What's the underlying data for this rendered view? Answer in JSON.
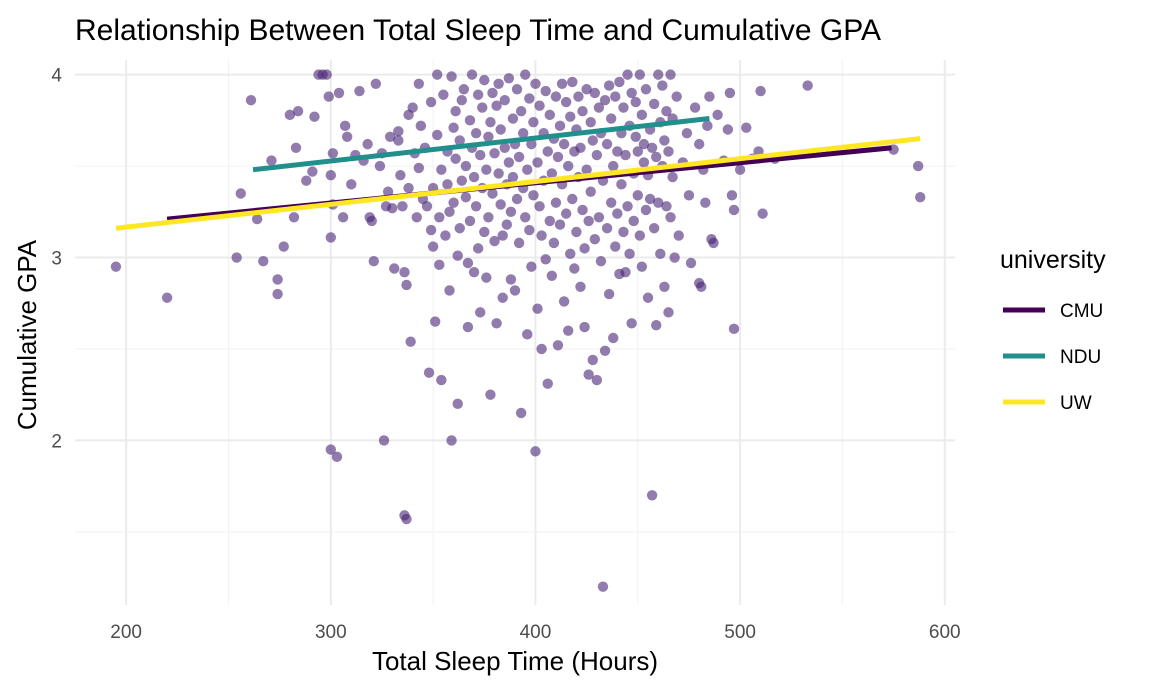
{
  "chart_data": {
    "type": "scatter",
    "title": "Relationship Between Total Sleep Time and Cumulative GPA",
    "xlabel": "Total Sleep Time (Hours)",
    "ylabel": "Cumulative GPA",
    "xlim": [
      175,
      605
    ],
    "ylim": [
      1.1,
      4.08
    ],
    "x_ticks": [
      200,
      300,
      400,
      500,
      600
    ],
    "y_ticks": [
      2,
      3,
      4
    ],
    "x_tick_labels": [
      "200",
      "300",
      "400",
      "500",
      "600"
    ],
    "y_tick_labels": [
      "2",
      "3",
      "4"
    ],
    "grid": true,
    "legend": {
      "title": "university",
      "placement": "right",
      "entries": [
        {
          "name": "CMU",
          "color": "#440154"
        },
        {
          "name": "NDU",
          "color": "#21908C"
        },
        {
          "name": "UW",
          "color": "#FDE725"
        }
      ]
    },
    "point_color": "#482576",
    "point_alpha": 0.6,
    "trend_lines": [
      {
        "name": "CMU",
        "color": "#440154",
        "x": [
          220,
          574
        ],
        "y": [
          3.21,
          3.6
        ]
      },
      {
        "name": "NDU",
        "color": "#21908C",
        "x": [
          262,
          485
        ],
        "y": [
          3.48,
          3.76
        ]
      },
      {
        "name": "UW",
        "color": "#FDE725",
        "x": [
          195,
          588
        ],
        "y": [
          3.16,
          3.65
        ]
      }
    ],
    "points": [
      [
        195,
        2.95
      ],
      [
        220,
        2.78
      ],
      [
        254,
        3.0
      ],
      [
        256,
        3.35
      ],
      [
        261,
        3.86
      ],
      [
        264,
        3.21
      ],
      [
        267,
        2.98
      ],
      [
        271,
        3.53
      ],
      [
        274,
        2.88
      ],
      [
        274,
        2.8
      ],
      [
        277,
        3.06
      ],
      [
        280,
        3.78
      ],
      [
        282,
        3.22
      ],
      [
        283,
        3.6
      ],
      [
        284,
        3.8
      ],
      [
        288,
        3.42
      ],
      [
        291,
        3.47
      ],
      [
        292,
        3.77
      ],
      [
        294,
        4.0
      ],
      [
        296,
        4.0
      ],
      [
        298,
        4.0
      ],
      [
        299,
        3.88
      ],
      [
        300,
        3.45
      ],
      [
        300,
        3.11
      ],
      [
        300,
        1.95
      ],
      [
        301,
        3.29
      ],
      [
        301,
        3.57
      ],
      [
        303,
        1.91
      ],
      [
        304,
        3.9
      ],
      [
        306,
        3.22
      ],
      [
        307,
        3.72
      ],
      [
        308,
        3.66
      ],
      [
        310,
        3.4
      ],
      [
        312,
        3.56
      ],
      [
        314,
        3.91
      ],
      [
        316,
        3.53
      ],
      [
        318,
        3.62
      ],
      [
        319,
        3.22
      ],
      [
        320,
        3.2
      ],
      [
        321,
        2.98
      ],
      [
        322,
        3.95
      ],
      [
        324,
        3.5
      ],
      [
        325,
        3.57
      ],
      [
        326,
        2.0
      ],
      [
        327,
        3.28
      ],
      [
        328,
        3.36
      ],
      [
        329,
        3.66
      ],
      [
        330,
        3.27
      ],
      [
        331,
        2.94
      ],
      [
        333,
        3.69
      ],
      [
        333,
        3.64
      ],
      [
        334,
        3.45
      ],
      [
        335,
        3.28
      ],
      [
        336,
        2.92
      ],
      [
        336,
        1.59
      ],
      [
        337,
        1.57
      ],
      [
        337,
        2.85
      ],
      [
        338,
        3.38
      ],
      [
        338,
        3.78
      ],
      [
        339,
        2.54
      ],
      [
        340,
        3.82
      ],
      [
        341,
        3.57
      ],
      [
        342,
        3.22
      ],
      [
        343,
        3.95
      ],
      [
        343,
        3.49
      ],
      [
        344,
        3.72
      ],
      [
        345,
        3.32
      ],
      [
        346,
        3.6
      ],
      [
        347,
        3.28
      ],
      [
        348,
        2.37
      ],
      [
        349,
        3.85
      ],
      [
        349,
        3.15
      ],
      [
        350,
        3.38
      ],
      [
        350,
        3.06
      ],
      [
        351,
        2.65
      ],
      [
        352,
        4.0
      ],
      [
        352,
        3.67
      ],
      [
        353,
        3.22
      ],
      [
        353,
        2.96
      ],
      [
        354,
        2.33
      ],
      [
        354,
        3.48
      ],
      [
        355,
        3.89
      ],
      [
        356,
        3.12
      ],
      [
        357,
        3.4
      ],
      [
        357,
        3.58
      ],
      [
        358,
        3.25
      ],
      [
        358,
        2.82
      ],
      [
        359,
        2.0
      ],
      [
        359,
        3.99
      ],
      [
        360,
        3.71
      ],
      [
        360,
        3.3
      ],
      [
        361,
        3.54
      ],
      [
        361,
        3.8
      ],
      [
        362,
        3.01
      ],
      [
        362,
        2.2
      ],
      [
        363,
        3.64
      ],
      [
        363,
        3.16
      ],
      [
        364,
        3.42
      ],
      [
        364,
        3.86
      ],
      [
        365,
        3.92
      ],
      [
        366,
        3.5
      ],
      [
        366,
        3.33
      ],
      [
        367,
        2.62
      ],
      [
        367,
        2.97
      ],
      [
        368,
        3.75
      ],
      [
        368,
        3.2
      ],
      [
        369,
        3.6
      ],
      [
        369,
        4.0
      ],
      [
        370,
        3.44
      ],
      [
        370,
        2.92
      ],
      [
        371,
        3.28
      ],
      [
        371,
        3.68
      ],
      [
        372,
        3.05
      ],
      [
        372,
        3.89
      ],
      [
        373,
        3.56
      ],
      [
        373,
        2.7
      ],
      [
        374,
        3.38
      ],
      [
        374,
        3.82
      ],
      [
        375,
        3.14
      ],
      [
        375,
        3.97
      ],
      [
        376,
        3.48
      ],
      [
        376,
        2.89
      ],
      [
        377,
        3.66
      ],
      [
        377,
        3.22
      ],
      [
        378,
        3.74
      ],
      [
        378,
        2.25
      ],
      [
        379,
        3.9
      ],
      [
        379,
        3.35
      ],
      [
        380,
        3.57
      ],
      [
        380,
        3.09
      ],
      [
        381,
        3.83
      ],
      [
        381,
        2.64
      ],
      [
        382,
        3.46
      ],
      [
        382,
        3.95
      ],
      [
        383,
        3.29
      ],
      [
        383,
        3.7
      ],
      [
        384,
        3.12
      ],
      [
        384,
        2.78
      ],
      [
        385,
        3.6
      ],
      [
        385,
        3.86
      ],
      [
        386,
        3.4
      ],
      [
        386,
        3.18
      ],
      [
        387,
        3.98
      ],
      [
        387,
        3.52
      ],
      [
        388,
        3.25
      ],
      [
        388,
        2.88
      ],
      [
        389,
        3.76
      ],
      [
        389,
        3.44
      ],
      [
        390,
        3.62
      ],
      [
        390,
        2.82
      ],
      [
        391,
        3.32
      ],
      [
        391,
        3.92
      ],
      [
        392,
        3.08
      ],
      [
        392,
        3.55
      ],
      [
        393,
        3.8
      ],
      [
        393,
        2.15
      ],
      [
        394,
        3.68
      ],
      [
        394,
        3.38
      ],
      [
        395,
        3.22
      ],
      [
        395,
        4.0
      ],
      [
        396,
        3.48
      ],
      [
        396,
        2.58
      ],
      [
        397,
        3.87
      ],
      [
        397,
        3.15
      ],
      [
        398,
        3.62
      ],
      [
        398,
        2.95
      ],
      [
        399,
        3.34
      ],
      [
        399,
        3.74
      ],
      [
        400,
        1.94
      ],
      [
        400,
        3.95
      ],
      [
        401,
        3.52
      ],
      [
        401,
        2.72
      ],
      [
        402,
        3.28
      ],
      [
        402,
        3.83
      ],
      [
        403,
        3.12
      ],
      [
        403,
        2.5
      ],
      [
        404,
        3.68
      ],
      [
        404,
        3.42
      ],
      [
        405,
        2.99
      ],
      [
        405,
        3.91
      ],
      [
        406,
        2.31
      ],
      [
        406,
        3.58
      ],
      [
        407,
        3.2
      ],
      [
        407,
        3.78
      ],
      [
        408,
        2.9
      ],
      [
        408,
        3.46
      ],
      [
        409,
        3.65
      ],
      [
        409,
        3.08
      ],
      [
        410,
        3.88
      ],
      [
        410,
        3.3
      ],
      [
        411,
        3.55
      ],
      [
        411,
        2.52
      ],
      [
        412,
        3.72
      ],
      [
        412,
        3.18
      ],
      [
        413,
        3.95
      ],
      [
        413,
        3.4
      ],
      [
        414,
        2.76
      ],
      [
        414,
        3.62
      ],
      [
        415,
        3.24
      ],
      [
        415,
        3.85
      ],
      [
        416,
        3.5
      ],
      [
        416,
        2.6
      ],
      [
        417,
        3.77
      ],
      [
        417,
        3.02
      ],
      [
        418,
        3.32
      ],
      [
        418,
        3.96
      ],
      [
        419,
        3.58
      ],
      [
        419,
        2.94
      ],
      [
        420,
        3.7
      ],
      [
        420,
        3.14
      ],
      [
        421,
        3.44
      ],
      [
        421,
        3.88
      ],
      [
        422,
        2.84
      ],
      [
        422,
        3.6
      ],
      [
        423,
        3.26
      ],
      [
        423,
        3.8
      ],
      [
        424,
        3.05
      ],
      [
        424,
        2.62
      ],
      [
        425,
        3.92
      ],
      [
        425,
        3.48
      ],
      [
        426,
        3.2
      ],
      [
        426,
        2.36
      ],
      [
        427,
        3.74
      ],
      [
        427,
        3.36
      ],
      [
        428,
        2.44
      ],
      [
        428,
        3.64
      ],
      [
        429,
        3.9
      ],
      [
        429,
        3.1
      ],
      [
        430,
        2.33
      ],
      [
        430,
        3.56
      ],
      [
        431,
        3.82
      ],
      [
        431,
        3.22
      ],
      [
        432,
        2.98
      ],
      [
        432,
        3.68
      ],
      [
        433,
        1.2
      ],
      [
        433,
        3.42
      ],
      [
        434,
        2.49
      ],
      [
        434,
        3.86
      ],
      [
        435,
        3.16
      ],
      [
        435,
        3.62
      ],
      [
        436,
        3.94
      ],
      [
        436,
        2.8
      ],
      [
        437,
        3.3
      ],
      [
        437,
        3.76
      ],
      [
        438,
        2.56
      ],
      [
        438,
        3.5
      ],
      [
        439,
        3.88
      ],
      [
        439,
        3.06
      ],
      [
        440,
        3.58
      ],
      [
        440,
        3.24
      ],
      [
        441,
        3.96
      ],
      [
        441,
        2.91
      ],
      [
        442,
        3.68
      ],
      [
        442,
        3.4
      ],
      [
        443,
        3.14
      ],
      [
        443,
        3.82
      ],
      [
        444,
        2.92
      ],
      [
        444,
        3.56
      ],
      [
        445,
        4.0
      ],
      [
        445,
        3.28
      ],
      [
        446,
        3.72
      ],
      [
        446,
        3.02
      ],
      [
        447,
        2.64
      ],
      [
        447,
        3.9
      ],
      [
        448,
        3.46
      ],
      [
        448,
        3.2
      ],
      [
        449,
        3.66
      ],
      [
        449,
        3.85
      ],
      [
        450,
        3.34
      ],
      [
        450,
        3.58
      ],
      [
        451,
        4.0
      ],
      [
        451,
        3.12
      ],
      [
        452,
        3.78
      ],
      [
        452,
        2.95
      ],
      [
        453,
        3.52
      ],
      [
        453,
        3.62
      ],
      [
        454,
        3.26
      ],
      [
        454,
        3.92
      ],
      [
        455,
        2.78
      ],
      [
        455,
        3.45
      ],
      [
        456,
        3.7
      ],
      [
        456,
        3.32
      ],
      [
        457,
        1.7
      ],
      [
        457,
        3.6
      ],
      [
        458,
        3.84
      ],
      [
        458,
        3.16
      ],
      [
        459,
        2.63
      ],
      [
        459,
        3.55
      ],
      [
        460,
        4.0
      ],
      [
        460,
        3.3
      ],
      [
        461,
        3.74
      ],
      [
        461,
        3.02
      ],
      [
        462,
        3.5
      ],
      [
        462,
        3.94
      ],
      [
        463,
        2.84
      ],
      [
        463,
        3.64
      ],
      [
        464,
        3.28
      ],
      [
        464,
        3.8
      ],
      [
        465,
        2.7
      ],
      [
        465,
        3.58
      ],
      [
        466,
        4.0
      ],
      [
        466,
        3.22
      ],
      [
        467,
        3.76
      ],
      [
        467,
        3.44
      ],
      [
        468,
        3.0
      ],
      [
        469,
        3.88
      ],
      [
        470,
        3.12
      ],
      [
        472,
        3.52
      ],
      [
        474,
        3.68
      ],
      [
        475,
        3.34
      ],
      [
        476,
        2.97
      ],
      [
        478,
        3.82
      ],
      [
        480,
        2.86
      ],
      [
        480,
        3.62
      ],
      [
        481,
        2.84
      ],
      [
        482,
        3.48
      ],
      [
        483,
        3.3
      ],
      [
        484,
        3.72
      ],
      [
        485,
        3.88
      ],
      [
        486,
        3.1
      ],
      [
        487,
        3.08
      ],
      [
        489,
        3.78
      ],
      [
        492,
        3.53
      ],
      [
        494,
        3.7
      ],
      [
        495,
        3.9
      ],
      [
        496,
        3.34
      ],
      [
        497,
        3.26
      ],
      [
        497,
        2.61
      ],
      [
        500,
        3.48
      ],
      [
        503,
        3.71
      ],
      [
        506,
        3.54
      ],
      [
        509,
        3.58
      ],
      [
        510,
        3.91
      ],
      [
        511,
        3.24
      ],
      [
        517,
        3.54
      ],
      [
        533,
        3.94
      ],
      [
        575,
        3.59
      ],
      [
        587,
        3.5
      ],
      [
        588,
        3.33
      ]
    ]
  }
}
